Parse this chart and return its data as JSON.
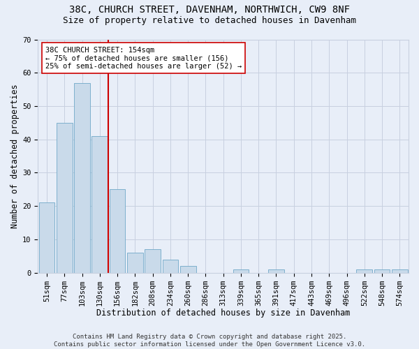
{
  "title_line1": "38C, CHURCH STREET, DAVENHAM, NORTHWICH, CW9 8NF",
  "title_line2": "Size of property relative to detached houses in Davenham",
  "xlabel": "Distribution of detached houses by size in Davenham",
  "ylabel": "Number of detached properties",
  "categories": [
    "51sqm",
    "77sqm",
    "103sqm",
    "130sqm",
    "156sqm",
    "182sqm",
    "208sqm",
    "234sqm",
    "260sqm",
    "286sqm",
    "313sqm",
    "339sqm",
    "365sqm",
    "391sqm",
    "417sqm",
    "443sqm",
    "469sqm",
    "496sqm",
    "522sqm",
    "548sqm",
    "574sqm"
  ],
  "values": [
    21,
    45,
    57,
    41,
    25,
    6,
    7,
    4,
    2,
    0,
    0,
    1,
    0,
    1,
    0,
    0,
    0,
    0,
    1,
    1,
    1
  ],
  "bar_color": "#c9daea",
  "bar_edge_color": "#6fa8c8",
  "reference_line_color": "#cc0000",
  "annotation_text": "38C CHURCH STREET: 154sqm\n← 75% of detached houses are smaller (156)\n25% of semi-detached houses are larger (52) →",
  "annotation_box_facecolor": "#ffffff",
  "annotation_box_edgecolor": "#cc0000",
  "ylim": [
    0,
    70
  ],
  "yticks": [
    0,
    10,
    20,
    30,
    40,
    50,
    60,
    70
  ],
  "background_color": "#e8eef8",
  "plot_background_color": "#e8eef8",
  "grid_color": "#c8d0e0",
  "footer_line1": "Contains HM Land Registry data © Crown copyright and database right 2025.",
  "footer_line2": "Contains public sector information licensed under the Open Government Licence v3.0.",
  "title_fontsize": 10,
  "subtitle_fontsize": 9,
  "axis_label_fontsize": 8.5,
  "tick_fontsize": 7.5,
  "annotation_fontsize": 7.5,
  "footer_fontsize": 6.5
}
